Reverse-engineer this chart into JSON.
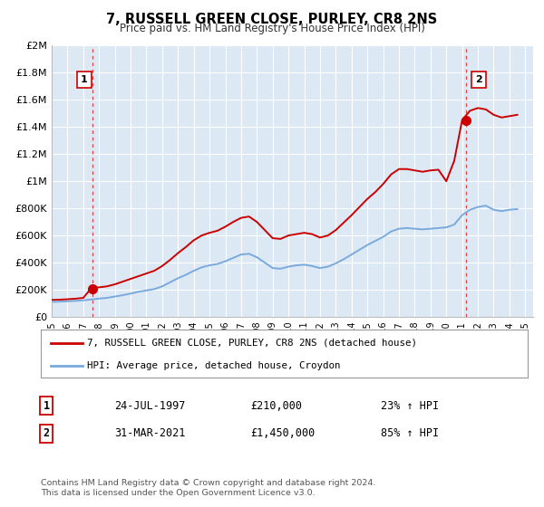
{
  "title": "7, RUSSELL GREEN CLOSE, PURLEY, CR8 2NS",
  "subtitle": "Price paid vs. HM Land Registry's House Price Index (HPI)",
  "legend_line1": "7, RUSSELL GREEN CLOSE, PURLEY, CR8 2NS (detached house)",
  "legend_line2": "HPI: Average price, detached house, Croydon",
  "sale1_label": "1",
  "sale1_date": "24-JUL-1997",
  "sale1_price": "£210,000",
  "sale1_hpi": "23% ↑ HPI",
  "sale1_x": 1997.56,
  "sale1_y": 210000,
  "sale2_label": "2",
  "sale2_date": "31-MAR-2021",
  "sale2_price": "£1,450,000",
  "sale2_hpi": "85% ↑ HPI",
  "sale2_x": 2021.25,
  "sale2_y": 1450000,
  "copyright": "Contains HM Land Registry data © Crown copyright and database right 2024.\nThis data is licensed under the Open Government Licence v3.0.",
  "hpi_color": "#7aaadd",
  "price_color": "#cc0000",
  "dashed_color": "#dd4444",
  "background_color": "#dce9f5",
  "grid_color": "#ffffff",
  "ylim": [
    0,
    2000000
  ],
  "xlim_start": 1995,
  "xlim_end": 2025.5,
  "yticks": [
    0,
    200000,
    400000,
    600000,
    800000,
    1000000,
    1200000,
    1400000,
    1600000,
    1800000,
    2000000
  ],
  "ytick_labels": [
    "£0",
    "£200K",
    "£400K",
    "£600K",
    "£800K",
    "£1M",
    "£1.2M",
    "£1.4M",
    "£1.6M",
    "£1.8M",
    "£2M"
  ],
  "hpi_data_x": [
    1995,
    1995.5,
    1996,
    1996.5,
    1997,
    1997.5,
    1998,
    1998.5,
    1999,
    1999.5,
    2000,
    2000.5,
    2001,
    2001.5,
    2002,
    2002.5,
    2003,
    2003.5,
    2004,
    2004.5,
    2005,
    2005.5,
    2006,
    2006.5,
    2007,
    2007.5,
    2008,
    2008.5,
    2009,
    2009.5,
    2010,
    2010.5,
    2011,
    2011.5,
    2012,
    2012.5,
    2013,
    2013.5,
    2014,
    2014.5,
    2015,
    2015.5,
    2016,
    2016.5,
    2017,
    2017.5,
    2018,
    2018.5,
    2019,
    2019.5,
    2020,
    2020.5,
    2021,
    2021.5,
    2022,
    2022.5,
    2023,
    2023.5,
    2024,
    2024.5
  ],
  "hpi_data_y": [
    110000,
    112000,
    115000,
    118000,
    122000,
    128000,
    135000,
    140000,
    150000,
    160000,
    172000,
    185000,
    195000,
    205000,
    225000,
    255000,
    285000,
    310000,
    340000,
    365000,
    380000,
    390000,
    410000,
    435000,
    460000,
    465000,
    440000,
    400000,
    360000,
    355000,
    370000,
    380000,
    385000,
    375000,
    360000,
    370000,
    395000,
    425000,
    460000,
    495000,
    530000,
    560000,
    590000,
    630000,
    650000,
    655000,
    650000,
    645000,
    650000,
    655000,
    660000,
    680000,
    750000,
    790000,
    810000,
    820000,
    790000,
    780000,
    790000,
    795000
  ],
  "price_data_x": [
    1995,
    1995.5,
    1996,
    1996.5,
    1997,
    1997.5,
    1998,
    1998.5,
    1999,
    1999.5,
    2000,
    2000.5,
    2001,
    2001.5,
    2002,
    2002.5,
    2003,
    2003.5,
    2004,
    2004.5,
    2005,
    2005.5,
    2006,
    2006.5,
    2007,
    2007.5,
    2008,
    2008.5,
    2009,
    2009.5,
    2010,
    2010.5,
    2011,
    2011.5,
    2012,
    2012.5,
    2013,
    2013.5,
    2014,
    2014.5,
    2015,
    2015.5,
    2016,
    2016.5,
    2017,
    2017.5,
    2018,
    2018.5,
    2019,
    2019.5,
    2020,
    2020.5,
    2021,
    2021.5,
    2022,
    2022.5,
    2023,
    2023.5,
    2024,
    2024.5
  ],
  "price_data_y": [
    125000,
    127000,
    130000,
    134000,
    140000,
    210000,
    218000,
    225000,
    240000,
    260000,
    280000,
    300000,
    320000,
    340000,
    375000,
    420000,
    470000,
    515000,
    565000,
    600000,
    620000,
    635000,
    665000,
    700000,
    730000,
    740000,
    700000,
    640000,
    580000,
    575000,
    600000,
    610000,
    620000,
    610000,
    585000,
    600000,
    640000,
    695000,
    750000,
    810000,
    870000,
    920000,
    980000,
    1050000,
    1090000,
    1090000,
    1080000,
    1070000,
    1080000,
    1085000,
    1000000,
    1150000,
    1450000,
    1520000,
    1540000,
    1530000,
    1490000,
    1470000,
    1480000,
    1490000
  ]
}
